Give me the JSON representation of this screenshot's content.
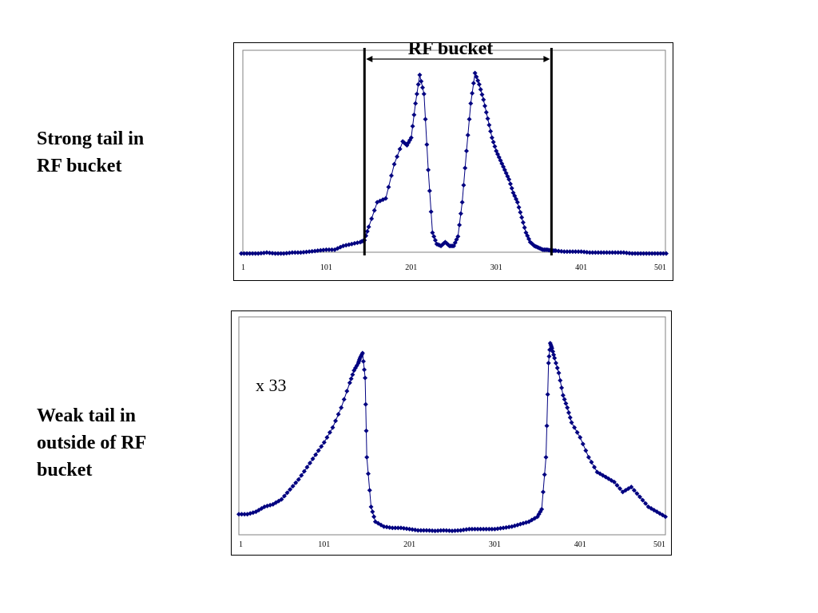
{
  "labels": {
    "top": [
      "Strong tail in",
      "RF bucket"
    ],
    "bottom": [
      "Weak tail in",
      "outside of RF",
      "bucket"
    ]
  },
  "colors": {
    "series": "#000080",
    "frame": "#000000"
  },
  "chart_data": [
    {
      "type": "line",
      "title": "",
      "xlabel": "",
      "ylabel": "",
      "xlim": [
        1,
        501
      ],
      "x_ticks": [
        "1",
        "101",
        "201",
        "301",
        "401",
        "501"
      ],
      "grid": false,
      "markers": "diamond",
      "annotation": {
        "text": "RF bucket",
        "x_start": 146,
        "x_end": 366
      },
      "x": [
        1,
        11,
        21,
        31,
        41,
        51,
        61,
        71,
        81,
        91,
        101,
        111,
        121,
        131,
        141,
        146,
        151,
        161,
        171,
        181,
        191,
        196,
        201,
        206,
        211,
        216,
        221,
        226,
        231,
        236,
        241,
        246,
        251,
        256,
        261,
        266,
        271,
        276,
        281,
        286,
        291,
        296,
        301,
        306,
        311,
        316,
        321,
        326,
        331,
        336,
        341,
        346,
        351,
        356,
        361,
        366,
        371,
        381,
        391,
        401,
        411,
        421,
        431,
        441,
        451,
        461,
        471,
        481,
        491,
        501
      ],
      "series": [
        {
          "values": [
            1,
            1,
            1,
            1.5,
            1,
            1,
            1.5,
            1.5,
            2,
            2.5,
            3,
            3,
            5,
            6,
            7,
            8,
            15,
            28,
            30,
            48,
            60,
            58,
            62,
            80,
            95,
            85,
            45,
            12,
            6,
            5,
            7,
            5,
            5,
            10,
            28,
            55,
            80,
            96,
            90,
            82,
            72,
            62,
            55,
            50,
            45,
            40,
            33,
            28,
            20,
            12,
            7,
            5,
            4,
            3,
            3,
            2.5,
            2.5,
            2,
            2,
            2,
            1.5,
            1.5,
            1.5,
            1.5,
            1.5,
            1,
            1,
            1,
            1,
            1
          ]
        }
      ]
    },
    {
      "type": "line",
      "title": "",
      "xlabel": "",
      "ylabel": "",
      "xlim": [
        1,
        501
      ],
      "x_ticks": [
        "1",
        "101",
        "201",
        "301",
        "401",
        "501"
      ],
      "grid": false,
      "markers": "diamond",
      "annotation": {
        "text": "x 33"
      },
      "x": [
        1,
        11,
        21,
        31,
        41,
        51,
        61,
        71,
        81,
        91,
        101,
        111,
        121,
        131,
        136,
        141,
        143,
        146,
        149,
        151,
        156,
        161,
        171,
        181,
        191,
        201,
        211,
        221,
        231,
        241,
        251,
        261,
        271,
        281,
        291,
        301,
        311,
        321,
        331,
        341,
        351,
        356,
        361,
        364,
        366,
        368,
        371,
        376,
        381,
        386,
        391,
        401,
        411,
        421,
        431,
        441,
        451,
        461,
        471,
        481,
        491,
        501
      ],
      "series": [
        {
          "values": [
            7,
            7,
            8,
            10,
            11,
            13,
            17,
            21,
            26,
            31,
            36,
            42,
            50,
            60,
            65,
            68,
            70,
            72,
            62,
            30,
            10,
            4,
            2,
            1.5,
            1.5,
            1,
            0.5,
            0.5,
            0.3,
            0.5,
            0.3,
            0.5,
            1,
            1,
            1,
            1,
            1.5,
            2,
            3,
            4,
            6,
            9,
            30,
            68,
            76,
            74,
            70,
            64,
            55,
            50,
            44,
            38,
            30,
            24,
            22,
            20,
            16,
            18,
            14,
            10,
            8,
            6
          ]
        }
      ]
    }
  ]
}
